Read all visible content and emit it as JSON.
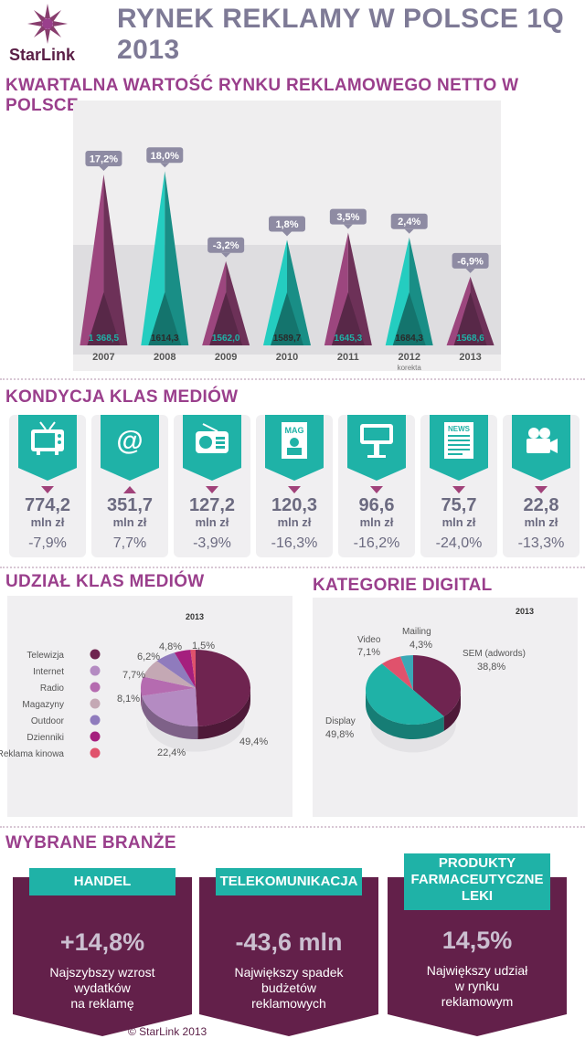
{
  "header": {
    "title": "RYNEK REKLAMY W POLSCE 1Q 2013",
    "logo_text": "StarLink"
  },
  "colors": {
    "purple": "#883d6e",
    "dark_purple": "#63204a",
    "teal": "#1fb2a7",
    "light_teal": "#8fd6d0",
    "grey_text": "#6b6a80"
  },
  "section1": {
    "title": "KWARTALNA WARTOŚĆ RYNKU REKLAMOWEGO NETTO W POLSCE"
  },
  "section2": {
    "title": "KONDYCJA KLAS MEDIÓW"
  },
  "section3": {
    "title": "UDZIAŁ KLAS MEDIÓW"
  },
  "section4": {
    "title": "KATEGORIE DIGITAL"
  },
  "section5": {
    "title": "WYBRANE BRANŻE"
  },
  "media": [
    {
      "icon": "tv-icon",
      "value": "774,2",
      "unit": "mln zł",
      "change": "-7,9%",
      "trend": "down"
    },
    {
      "icon": "at-icon",
      "value": "351,7",
      "unit": "mln zł",
      "change": "7,7%",
      "trend": "up"
    },
    {
      "icon": "radio-icon",
      "value": "127,2",
      "unit": "mln zł",
      "change": "-3,9%",
      "trend": "down"
    },
    {
      "icon": "magazine-icon",
      "icon_text": "MAG",
      "value": "120,3",
      "unit": "mln zł",
      "change": "-16,3%",
      "trend": "down"
    },
    {
      "icon": "billboard-icon",
      "value": "96,6",
      "unit": "mln zł",
      "change": "-16,2%",
      "trend": "down"
    },
    {
      "icon": "newspaper-icon",
      "icon_text": "NEWS",
      "value": "75,7",
      "unit": "mln zł",
      "change": "-24,0%",
      "trend": "down"
    },
    {
      "icon": "camera-icon",
      "value": "22,8",
      "unit": "mln zł",
      "change": "-13,3%",
      "trend": "down"
    }
  ],
  "industries": [
    {
      "name": "HANDEL",
      "value": "+14,8%",
      "desc": "Najszybszy wzrost\nwydatków\nna reklamę"
    },
    {
      "name": "TELEKOMUNIKACJA",
      "value": "-43,6 mln",
      "desc": "Największy spadek\nbudżetów\nreklamowych"
    },
    {
      "name": "PRODUKTY\nFARMACEUTYCZNE\nLEKI",
      "value": "14,5%",
      "desc": "Największy udział\nw rynku\nreklamowym"
    }
  ],
  "footer": "© StarLink 2013",
  "chart_data": [
    {
      "type": "bar",
      "categories": [
        "2007",
        "2008",
        "2009",
        "2010",
        "2011",
        "2012",
        "2013"
      ],
      "category_sublabels": [
        "",
        "",
        "",
        "",
        "",
        "korekta",
        ""
      ],
      "values": [
        1368.5,
        1614.3,
        1562.0,
        1589.7,
        1645.3,
        1684.3,
        1568.6
      ],
      "value_labels": [
        "1 368,5",
        "1614,3",
        "1562,0",
        "1589,7",
        "1645,3",
        "1684,3",
        "1568,6"
      ],
      "growth_labels": [
        "17,2%",
        "18,0%",
        "-3,2%",
        "1,8%",
        "3,5%",
        "2,4%",
        "-6,9%"
      ],
      "growth": [
        17.2,
        18.0,
        -3.2,
        1.8,
        3.5,
        2.4,
        -6.9
      ],
      "colors": [
        "#883d6e",
        "#1fb2a7",
        "#883d6e",
        "#1fb2a7",
        "#883d6e",
        "#1fb2a7",
        "#883d6e"
      ]
    },
    {
      "type": "pie",
      "year_label": "2013",
      "labels": [
        "Telewizja",
        "Internet",
        "Radio",
        "Magazyny",
        "Outdoor",
        "Dzienniki",
        "Reklama kinowa"
      ],
      "values": [
        49.4,
        22.4,
        8.1,
        7.7,
        6.2,
        4.8,
        1.5
      ],
      "value_labels": [
        "49,4%",
        "22,4%",
        "8,1%",
        "7,7%",
        "6,2%",
        "4,8%",
        "1,5%"
      ],
      "colors": [
        "#6f2450",
        "#b48bc2",
        "#b56bb0",
        "#c4a8b4",
        "#8f7bbd",
        "#a51f7e",
        "#e0526c"
      ]
    },
    {
      "type": "pie",
      "year_label": "2013",
      "labels": [
        "SEM (adwords)",
        "Display",
        "Video",
        "Mailing"
      ],
      "values": [
        38.8,
        49.8,
        7.1,
        4.3
      ],
      "value_labels": [
        "38,8%",
        "49,8%",
        "7,1%",
        "4,3%"
      ],
      "colors": [
        "#6f2450",
        "#1fb2a7",
        "#e0526c",
        "#3aa8b6"
      ]
    }
  ]
}
